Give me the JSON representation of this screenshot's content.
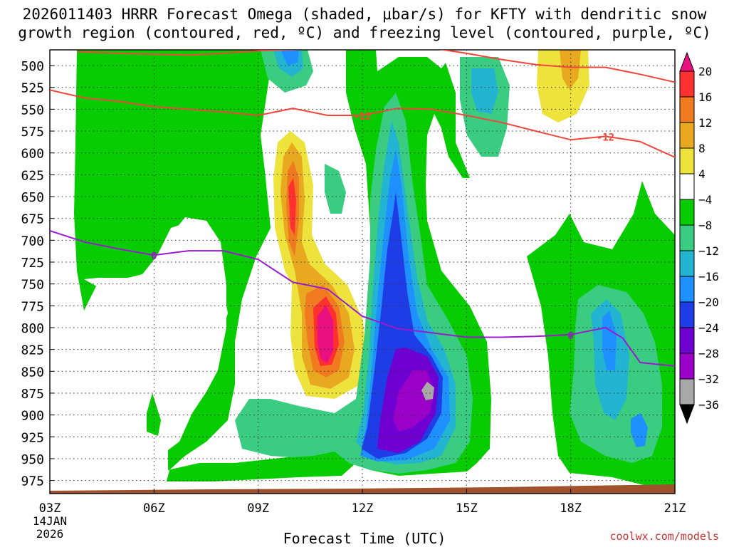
{
  "title_line1": "2026011403 HRRR Forecast Omega (shaded, μbar/s) for KFTY with dendritic snow",
  "title_line2": "growth region (contoured, red, ºC) and freezing level (contoured, purple, ºC)",
  "credit": "coolwx.com/models",
  "chart_data": {
    "type": "time-height cross section (filled contour)",
    "xlabel": "Forecast Time (UTC)",
    "date_label": [
      "14JAN",
      "2026"
    ],
    "x_ticks": [
      "03Z",
      "06Z",
      "09Z",
      "12Z",
      "15Z",
      "18Z",
      "21Z"
    ],
    "x_range_hours": [
      3,
      21
    ],
    "y_ticks": [
      500,
      525,
      550,
      575,
      600,
      625,
      650,
      675,
      700,
      725,
      750,
      775,
      800,
      825,
      850,
      875,
      900,
      925,
      950,
      975
    ],
    "y_range_mb": [
      482,
      990
    ],
    "colorbar": {
      "labels": [
        "20",
        "16",
        "12",
        "8",
        "4",
        "−4",
        "−8",
        "−12",
        "−16",
        "−20",
        "−24",
        "−28",
        "−32",
        "−36"
      ],
      "colors": [
        "#e8117f",
        "#ff3030",
        "#f07a20",
        "#e8a820",
        "#ede33c",
        "#ffffff",
        "#06cc00",
        "#3acc80",
        "#22b4d0",
        "#1e90ff",
        "#1e3de6",
        "#6e00d2",
        "#9a00c8",
        "#a8a8a8",
        "#000000"
      ]
    },
    "isotherm_dgz_minus12": {
      "label": "-12",
      "points": [
        [
          3,
          528
        ],
        [
          4,
          537
        ],
        [
          5,
          541
        ],
        [
          6,
          547
        ],
        [
          7,
          550
        ],
        [
          8,
          553
        ],
        [
          9,
          557
        ],
        [
          10,
          549
        ],
        [
          11,
          557
        ],
        [
          12,
          557
        ],
        [
          13,
          549
        ],
        [
          14,
          550
        ],
        [
          15,
          557
        ],
        [
          16,
          565
        ],
        [
          17,
          575
        ],
        [
          18,
          585
        ],
        [
          19,
          581
        ],
        [
          20,
          587
        ],
        [
          21,
          605
        ]
      ],
      "upper_points": [
        [
          3.8,
          484
        ],
        [
          5,
          486
        ],
        [
          7,
          488
        ],
        [
          8,
          486
        ],
        [
          9,
          483
        ],
        [
          12,
          479
        ],
        [
          14,
          480
        ],
        [
          15,
          486
        ],
        [
          16,
          493
        ],
        [
          17,
          499
        ],
        [
          18,
          502
        ],
        [
          19,
          502
        ],
        [
          20,
          510
        ],
        [
          21,
          519
        ]
      ],
      "label_at": [
        [
          12,
          557
        ],
        [
          19,
          581
        ]
      ]
    },
    "freezing_level_0C": {
      "label": "0",
      "points": [
        [
          3,
          689
        ],
        [
          4,
          702
        ],
        [
          5,
          710
        ],
        [
          6,
          717
        ],
        [
          7,
          712
        ],
        [
          8,
          712
        ],
        [
          9,
          722
        ],
        [
          10,
          748
        ],
        [
          11,
          756
        ],
        [
          12,
          787
        ],
        [
          13,
          801
        ],
        [
          14,
          806
        ],
        [
          15,
          811
        ],
        [
          16,
          811
        ],
        [
          17,
          810
        ],
        [
          18,
          808
        ],
        [
          19,
          800
        ],
        [
          19.5,
          812
        ],
        [
          20,
          840
        ],
        [
          21,
          844
        ]
      ],
      "label_at": [
        [
          6,
          717
        ],
        [
          18,
          808
        ]
      ]
    }
  }
}
